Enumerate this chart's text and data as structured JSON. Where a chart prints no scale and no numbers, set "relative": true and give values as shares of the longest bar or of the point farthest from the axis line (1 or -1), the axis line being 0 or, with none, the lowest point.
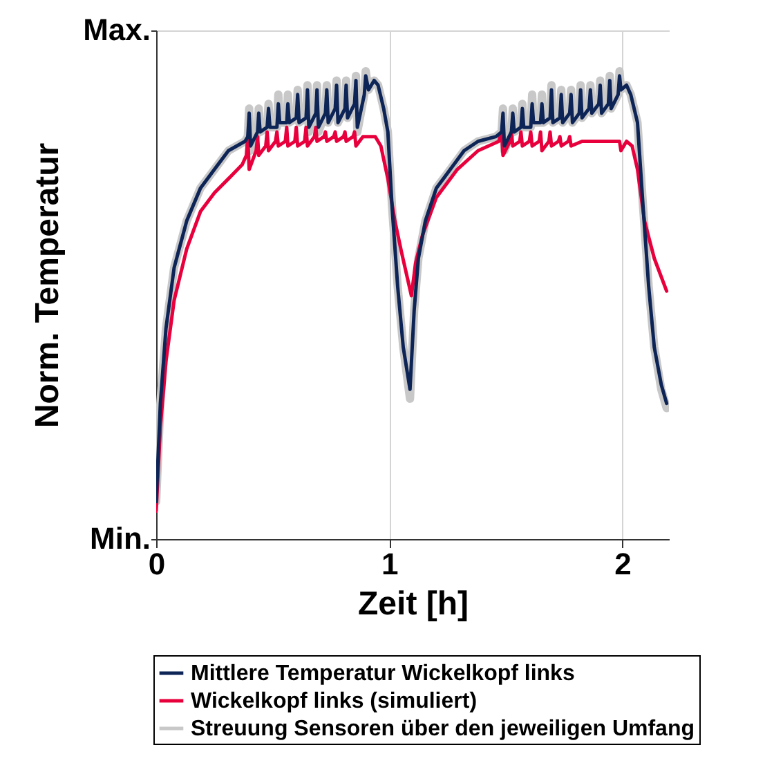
{
  "chart_data": {
    "type": "line",
    "relative": true,
    "xlabel": "Zeit [h]",
    "ylabel": "Norm. Temperatur",
    "xlim": [
      0,
      2.2
    ],
    "xticks": [
      0,
      1,
      2
    ],
    "annotations": [
      "Max.",
      "Min."
    ],
    "grid": true,
    "legend": "bottom",
    "line_style": "solid",
    "series": [
      {
        "name": "Mittlere Temperatur Wickelkopf links",
        "color": "#0d2456",
        "x": [
          0,
          0.018,
          0.042,
          0.077,
          0.131,
          0.19,
          0.25,
          0.31,
          0.381,
          0.393,
          0.399,
          0.405,
          0.435,
          0.44,
          0.446,
          0.476,
          0.482,
          0.488,
          0.518,
          0.524,
          0.53,
          0.56,
          0.565,
          0.571,
          0.601,
          0.607,
          0.613,
          0.643,
          0.649,
          0.655,
          0.685,
          0.69,
          0.696,
          0.726,
          0.732,
          0.738,
          0.768,
          0.774,
          0.78,
          0.81,
          0.815,
          0.821,
          0.851,
          0.857,
          0.863,
          0.893,
          0.899,
          0.911,
          0.935,
          0.952,
          0.976,
          0.994,
          1.012,
          1.036,
          1.06,
          1.089,
          1.107,
          1.125,
          1.155,
          1.202,
          1.262,
          1.321,
          1.381,
          1.458,
          1.482,
          1.488,
          1.494,
          1.524,
          1.53,
          1.536,
          1.565,
          1.571,
          1.577,
          1.607,
          1.613,
          1.619,
          1.649,
          1.655,
          1.661,
          1.69,
          1.696,
          1.702,
          1.732,
          1.738,
          1.744,
          1.774,
          1.78,
          1.786,
          1.815,
          1.821,
          1.827,
          1.857,
          1.863,
          1.869,
          1.899,
          1.905,
          1.911,
          1.94,
          1.946,
          1.952,
          1.982,
          1.988,
          1.994,
          2.018,
          2.036,
          2.065,
          2.089,
          2.113,
          2.137,
          2.167,
          2.19
        ],
        "values": [
          0.08,
          0.29,
          0.45,
          0.58,
          0.68,
          0.75,
          0.79,
          0.83,
          0.85,
          0.86,
          0.91,
          0.84,
          0.87,
          0.91,
          0.87,
          0.88,
          0.92,
          0.88,
          0.88,
          0.93,
          0.89,
          0.89,
          0.93,
          0.89,
          0.9,
          0.95,
          0.89,
          0.9,
          0.96,
          0.88,
          0.91,
          0.96,
          0.88,
          0.91,
          0.96,
          0.89,
          0.92,
          0.97,
          0.89,
          0.92,
          0.97,
          0.9,
          0.93,
          0.98,
          0.88,
          0.95,
          0.99,
          0.96,
          0.98,
          0.97,
          0.92,
          0.87,
          0.71,
          0.54,
          0.41,
          0.32,
          0.49,
          0.6,
          0.68,
          0.75,
          0.79,
          0.83,
          0.85,
          0.86,
          0.87,
          0.91,
          0.84,
          0.87,
          0.91,
          0.87,
          0.88,
          0.92,
          0.88,
          0.88,
          0.93,
          0.89,
          0.89,
          0.93,
          0.89,
          0.9,
          0.96,
          0.89,
          0.9,
          0.95,
          0.89,
          0.91,
          0.95,
          0.89,
          0.91,
          0.96,
          0.9,
          0.92,
          0.96,
          0.91,
          0.93,
          0.97,
          0.91,
          0.93,
          0.98,
          0.92,
          0.95,
          0.99,
          0.96,
          0.97,
          0.95,
          0.89,
          0.71,
          0.54,
          0.41,
          0.33,
          0.29
        ]
      },
      {
        "name": "Wickelkopf links (simuliert)",
        "color": "#e8003d",
        "x": [
          0,
          0.018,
          0.042,
          0.077,
          0.131,
          0.19,
          0.25,
          0.31,
          0.369,
          0.387,
          0.393,
          0.399,
          0.429,
          0.435,
          0.44,
          0.47,
          0.476,
          0.482,
          0.512,
          0.518,
          0.524,
          0.554,
          0.56,
          0.565,
          0.595,
          0.601,
          0.607,
          0.637,
          0.643,
          0.649,
          0.679,
          0.685,
          0.69,
          0.72,
          0.726,
          0.732,
          0.762,
          0.768,
          0.774,
          0.804,
          0.81,
          0.815,
          0.845,
          0.851,
          0.857,
          0.887,
          0.893,
          0.911,
          0.94,
          0.964,
          0.994,
          1.024,
          1.054,
          1.095,
          1.113,
          1.143,
          1.202,
          1.292,
          1.381,
          1.47,
          1.482,
          1.488,
          1.518,
          1.524,
          1.53,
          1.56,
          1.565,
          1.571,
          1.601,
          1.607,
          1.613,
          1.643,
          1.649,
          1.655,
          1.685,
          1.69,
          1.696,
          1.726,
          1.732,
          1.738,
          1.768,
          1.774,
          1.78,
          1.827,
          1.887,
          1.946,
          1.988,
          1.994,
          2.018,
          2.042,
          2.065,
          2.095,
          2.137,
          2.19
        ],
        "values": [
          0.06,
          0.24,
          0.38,
          0.51,
          0.62,
          0.7,
          0.74,
          0.77,
          0.8,
          0.82,
          0.86,
          0.79,
          0.83,
          0.86,
          0.82,
          0.84,
          0.87,
          0.83,
          0.85,
          0.87,
          0.84,
          0.85,
          0.88,
          0.84,
          0.85,
          0.88,
          0.84,
          0.85,
          0.88,
          0.84,
          0.86,
          0.88,
          0.85,
          0.86,
          0.87,
          0.85,
          0.86,
          0.87,
          0.85,
          0.86,
          0.87,
          0.85,
          0.86,
          0.87,
          0.84,
          0.86,
          0.86,
          0.86,
          0.86,
          0.84,
          0.77,
          0.68,
          0.61,
          0.52,
          0.59,
          0.65,
          0.73,
          0.79,
          0.83,
          0.85,
          0.87,
          0.82,
          0.85,
          0.87,
          0.84,
          0.85,
          0.87,
          0.84,
          0.85,
          0.87,
          0.84,
          0.85,
          0.87,
          0.83,
          0.85,
          0.87,
          0.84,
          0.85,
          0.86,
          0.84,
          0.85,
          0.86,
          0.84,
          0.85,
          0.85,
          0.85,
          0.85,
          0.83,
          0.85,
          0.84,
          0.79,
          0.68,
          0.6,
          0.53
        ]
      },
      {
        "name": "Streuung Sensoren über den jeweiligen Umfang",
        "color": "#c8c8c8",
        "x": [
          0,
          0.018,
          0.042,
          0.077,
          0.131,
          0.19,
          0.25,
          0.31,
          0.381,
          0.393,
          0.399,
          0.405,
          0.435,
          0.44,
          0.446,
          0.476,
          0.482,
          0.488,
          0.518,
          0.524,
          0.53,
          0.56,
          0.565,
          0.571,
          0.601,
          0.607,
          0.613,
          0.643,
          0.649,
          0.655,
          0.685,
          0.69,
          0.696,
          0.726,
          0.732,
          0.738,
          0.768,
          0.774,
          0.78,
          0.81,
          0.815,
          0.821,
          0.851,
          0.857,
          0.863,
          0.893,
          0.899,
          0.911,
          0.935,
          0.952,
          0.976,
          0.994,
          1.012,
          1.036,
          1.06,
          1.089,
          1.107,
          1.125,
          1.155,
          1.202,
          1.262,
          1.321,
          1.381,
          1.458,
          1.482,
          1.488,
          1.494,
          1.524,
          1.53,
          1.536,
          1.565,
          1.571,
          1.577,
          1.607,
          1.613,
          1.619,
          1.649,
          1.655,
          1.661,
          1.69,
          1.696,
          1.702,
          1.732,
          1.738,
          1.744,
          1.774,
          1.78,
          1.786,
          1.815,
          1.821,
          1.827,
          1.857,
          1.863,
          1.869,
          1.899,
          1.905,
          1.911,
          1.94,
          1.946,
          1.952,
          1.982,
          1.988,
          1.994,
          2.018,
          2.036,
          2.065,
          2.089,
          2.113,
          2.137,
          2.167,
          2.19
        ],
        "values": [
          0.08,
          0.29,
          0.45,
          0.58,
          0.68,
          0.75,
          0.79,
          0.83,
          0.85,
          0.86,
          0.92,
          0.83,
          0.87,
          0.92,
          0.87,
          0.88,
          0.93,
          0.88,
          0.88,
          0.95,
          0.89,
          0.89,
          0.95,
          0.89,
          0.9,
          0.96,
          0.89,
          0.9,
          0.97,
          0.87,
          0.91,
          0.97,
          0.87,
          0.91,
          0.97,
          0.89,
          0.92,
          0.98,
          0.89,
          0.92,
          0.98,
          0.9,
          0.93,
          0.99,
          0.87,
          0.95,
          1,
          0.96,
          0.98,
          0.97,
          0.92,
          0.87,
          0.71,
          0.54,
          0.41,
          0.3,
          0.49,
          0.6,
          0.68,
          0.75,
          0.79,
          0.83,
          0.85,
          0.86,
          0.87,
          0.92,
          0.83,
          0.87,
          0.92,
          0.87,
          0.88,
          0.93,
          0.88,
          0.88,
          0.95,
          0.89,
          0.89,
          0.95,
          0.89,
          0.9,
          0.97,
          0.89,
          0.9,
          0.96,
          0.89,
          0.91,
          0.96,
          0.89,
          0.91,
          0.97,
          0.9,
          0.92,
          0.97,
          0.91,
          0.93,
          0.98,
          0.91,
          0.93,
          0.99,
          0.92,
          0.95,
          1,
          0.96,
          0.97,
          0.95,
          0.89,
          0.71,
          0.54,
          0.41,
          0.32,
          0.28
        ]
      }
    ]
  }
}
